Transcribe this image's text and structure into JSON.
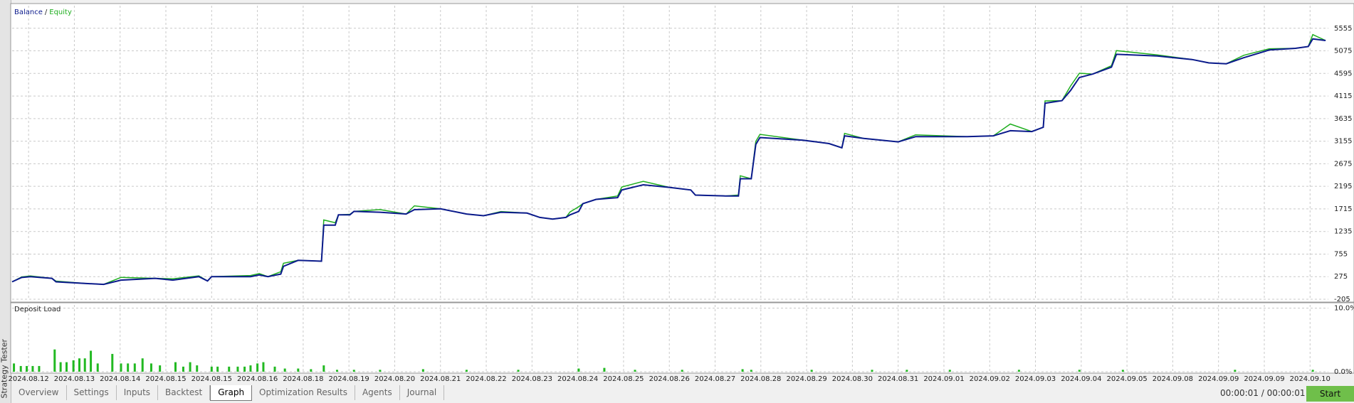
{
  "panel_title": "Strategy Tester",
  "chart_data": [
    {
      "type": "line",
      "legend": "top-left",
      "legend_separator": "/",
      "grid": true,
      "x": [
        -0.36,
        -0.15,
        0.04,
        0.51,
        0.6,
        1.26,
        1.64,
        2.02,
        2.77,
        3.15,
        3.72,
        3.91,
        4.0,
        4.85,
        5.04,
        5.23,
        5.51,
        5.57,
        5.89,
        6.4,
        6.45,
        6.7,
        6.77,
        7.02,
        7.11,
        7.68,
        8.25,
        8.43,
        9.0,
        9.57,
        9.94,
        10.32,
        10.89,
        11.17,
        11.45,
        11.74,
        11.83,
        12.02,
        12.11,
        12.4,
        12.87,
        12.96,
        13.43,
        14.0,
        14.47,
        14.57,
        15.23,
        15.51,
        15.55,
        15.79,
        15.89,
        15.98,
        16.92,
        17.49,
        17.77,
        17.83,
        18.25,
        19.0,
        19.38,
        20.51,
        21.08,
        21.45,
        21.92,
        22.17,
        22.21,
        22.58,
        22.77,
        22.96,
        23.25,
        23.66,
        23.77,
        24.66,
        25.42,
        25.79,
        26.17,
        26.55,
        27.11,
        27.68,
        27.96,
        28.06,
        28.34
      ],
      "series": [
        {
          "name": "Balance",
          "color": "#0b1a8c",
          "values": [
            165,
            257,
            275,
            239,
            165,
            129,
            111,
            202,
            239,
            202,
            275,
            184,
            275,
            275,
            312,
            275,
            330,
            494,
            622,
            604,
            1370,
            1370,
            1589,
            1589,
            1662,
            1644,
            1607,
            1699,
            1717,
            1607,
            1571,
            1644,
            1626,
            1534,
            1498,
            1534,
            1589,
            1662,
            1826,
            1918,
            1954,
            2118,
            2228,
            2173,
            2118,
            2009,
            1991,
            1991,
            2356,
            2356,
            3086,
            3232,
            3177,
            3104,
            3013,
            3268,
            3213,
            3140,
            3250,
            3250,
            3268,
            3378,
            3359,
            3451,
            3962,
            4016,
            4235,
            4509,
            4582,
            4728,
            5002,
            4965,
            4892,
            4819,
            4801,
            4929,
            5093,
            5129,
            5166,
            5330,
            5294
          ]
        },
        {
          "name": "Equity",
          "color": "#1fae1f",
          "values": [
            165,
            270,
            290,
            239,
            180,
            129,
            111,
            260,
            239,
            230,
            290,
            184,
            275,
            300,
            340,
            275,
            380,
            560,
            622,
            604,
            1480,
            1420,
            1589,
            1600,
            1662,
            1700,
            1607,
            1780,
            1717,
            1607,
            1571,
            1660,
            1626,
            1534,
            1498,
            1534,
            1650,
            1760,
            1826,
            1918,
            1990,
            2180,
            2300,
            2173,
            2118,
            2009,
            1991,
            2010,
            2420,
            2356,
            3150,
            3300,
            3177,
            3104,
            3013,
            3320,
            3213,
            3140,
            3290,
            3250,
            3268,
            3520,
            3359,
            3451,
            4010,
            4016,
            4330,
            4600,
            4582,
            4760,
            5080,
            4990,
            4892,
            4819,
            4801,
            4980,
            5120,
            5129,
            5166,
            5420,
            5294
          ]
        }
      ],
      "xlim": [
        -0.36,
        28.4
      ],
      "xticks": [
        0,
        1,
        2,
        3,
        4,
        5,
        6,
        7,
        8,
        9,
        10,
        11,
        12,
        13,
        14,
        15,
        16,
        17,
        18,
        19,
        20,
        21,
        22,
        23,
        24,
        25,
        26,
        27,
        28
      ],
      "ylim": [
        -205,
        6035
      ],
      "yticks": [
        -205,
        275,
        755,
        1235,
        1715,
        2195,
        2675,
        3155,
        3635,
        4115,
        4595,
        5075,
        5555
      ]
    },
    {
      "type": "bar",
      "title": "Deposit Load",
      "color": "#22b922",
      "grid": true,
      "x": [
        -0.32,
        -0.17,
        -0.04,
        0.09,
        0.23,
        0.57,
        0.7,
        0.83,
        0.98,
        1.11,
        1.23,
        1.36,
        1.51,
        1.83,
        2.02,
        2.17,
        2.32,
        2.49,
        2.68,
        2.87,
        3.21,
        3.38,
        3.53,
        3.68,
        4.0,
        4.13,
        4.38,
        4.57,
        4.72,
        4.85,
        5.0,
        5.13,
        5.38,
        5.6,
        5.89,
        6.17,
        6.45,
        6.74,
        7.11,
        7.68,
        8.62,
        9.57,
        10.7,
        12.02,
        12.58,
        13.25,
        14.28,
        15.6,
        15.79,
        17.11,
        18.43,
        19.19,
        20.13,
        21.64,
        22.96,
        23.91,
        26.36,
        28.06
      ],
      "values": [
        1.3,
        0.9,
        0.9,
        0.9,
        0.9,
        3.5,
        1.5,
        1.5,
        1.8,
        2.1,
        2.1,
        3.3,
        1.3,
        2.8,
        1.3,
        1.3,
        1.3,
        2.1,
        1.3,
        1.0,
        1.5,
        0.8,
        1.5,
        1.0,
        0.8,
        0.8,
        0.8,
        0.8,
        0.8,
        1.0,
        1.3,
        1.5,
        0.8,
        0.5,
        0.5,
        0.4,
        1.0,
        0.3,
        0.3,
        0.3,
        0.4,
        0.3,
        0.3,
        0.5,
        0.6,
        0.3,
        0.3,
        0.4,
        0.3,
        0.3,
        0.3,
        0.3,
        0.3,
        0.3,
        0.3,
        0.3,
        0.3,
        0.3
      ],
      "xlim": [
        -0.36,
        28.4
      ],
      "xticks": [
        {
          "value": 0,
          "label": "2024.08.12"
        },
        {
          "value": 1,
          "label": "2024.08.13"
        },
        {
          "value": 2,
          "label": "2024.08.14"
        },
        {
          "value": 3,
          "label": "2024.08.15"
        },
        {
          "value": 4,
          "label": "2024.08.15"
        },
        {
          "value": 5,
          "label": "2024.08.16"
        },
        {
          "value": 6,
          "label": "2024.08.18"
        },
        {
          "value": 7,
          "label": "2024.08.19"
        },
        {
          "value": 8,
          "label": "2024.08.20"
        },
        {
          "value": 9,
          "label": "2024.08.21"
        },
        {
          "value": 10,
          "label": "2024.08.22"
        },
        {
          "value": 11,
          "label": "2024.08.23"
        },
        {
          "value": 12,
          "label": "2024.08.24"
        },
        {
          "value": 13,
          "label": "2024.08.25"
        },
        {
          "value": 14,
          "label": "2024.08.26"
        },
        {
          "value": 15,
          "label": "2024.08.27"
        },
        {
          "value": 16,
          "label": "2024.08.28"
        },
        {
          "value": 17,
          "label": "2024.08.29"
        },
        {
          "value": 18,
          "label": "2024.08.30"
        },
        {
          "value": 19,
          "label": "2024.08.31"
        },
        {
          "value": 20,
          "label": "2024.09.01"
        },
        {
          "value": 21,
          "label": "2024.09.02"
        },
        {
          "value": 22,
          "label": "2024.09.03"
        },
        {
          "value": 23,
          "label": "2024.09.04"
        },
        {
          "value": 24,
          "label": "2024.09.05"
        },
        {
          "value": 25,
          "label": "2024.09.08"
        },
        {
          "value": 26,
          "label": "2024.09.09"
        },
        {
          "value": 27,
          "label": "2024.09.09"
        },
        {
          "value": 28,
          "label": "2024.09.10"
        }
      ],
      "ylim": [
        0,
        10.5
      ],
      "yticks": [
        {
          "value": 10,
          "label": "10.0%"
        },
        {
          "value": 0,
          "label": "0.0%"
        }
      ]
    }
  ],
  "tabs": [
    "Overview",
    "Settings",
    "Inputs",
    "Backtest",
    "Graph",
    "Optimization Results",
    "Agents",
    "Journal"
  ],
  "active_tab": 4,
  "timer": "00:00:01 / 00:00:01",
  "button": "Start"
}
